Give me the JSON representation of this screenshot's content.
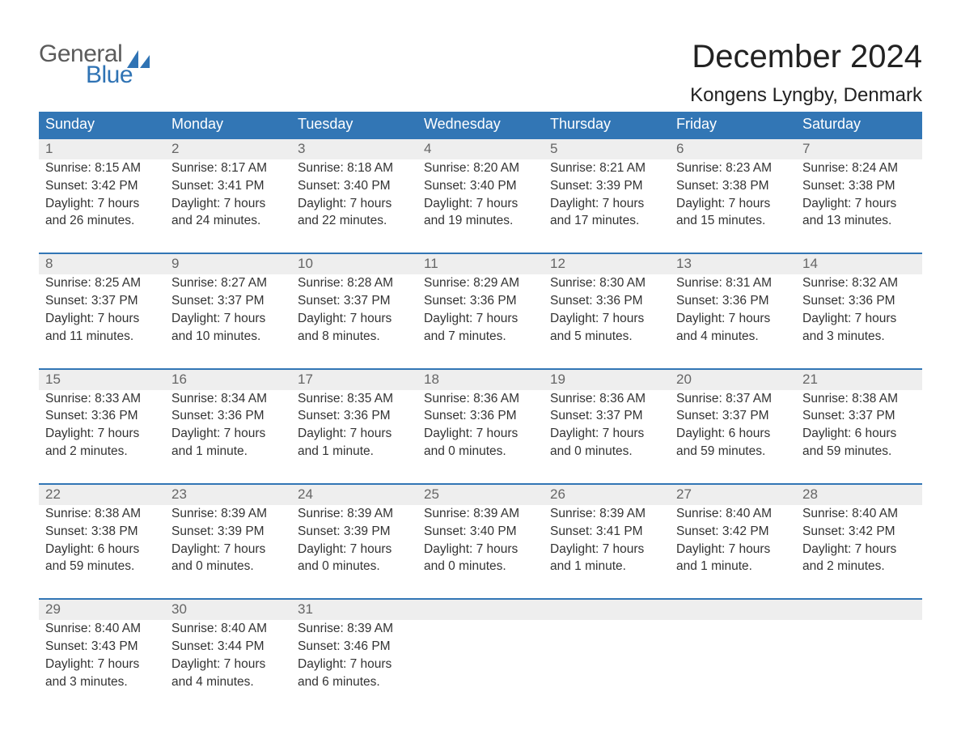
{
  "brand": {
    "line1": "General",
    "line2": "Blue",
    "text_color_1": "#5b5b5b",
    "text_color_2": "#2f73b4",
    "sail_color": "#2f73b4"
  },
  "title": {
    "month": "December 2024",
    "location": "Kongens Lyngby, Denmark",
    "month_fontsize": 40,
    "location_fontsize": 24,
    "text_color": "#222222"
  },
  "calendar": {
    "header_bg": "#3276b5",
    "header_text_color": "#ffffff",
    "week_border_color": "#3276b5",
    "daynum_bg": "#eeeeee",
    "daynum_color": "#666666",
    "body_text_color": "#333333",
    "background_color": "#ffffff",
    "day_headers": [
      "Sunday",
      "Monday",
      "Tuesday",
      "Wednesday",
      "Thursday",
      "Friday",
      "Saturday"
    ],
    "days": [
      {
        "n": "1",
        "sunrise": "Sunrise: 8:15 AM",
        "sunset": "Sunset: 3:42 PM",
        "dl1": "Daylight: 7 hours",
        "dl2": "and 26 minutes."
      },
      {
        "n": "2",
        "sunrise": "Sunrise: 8:17 AM",
        "sunset": "Sunset: 3:41 PM",
        "dl1": "Daylight: 7 hours",
        "dl2": "and 24 minutes."
      },
      {
        "n": "3",
        "sunrise": "Sunrise: 8:18 AM",
        "sunset": "Sunset: 3:40 PM",
        "dl1": "Daylight: 7 hours",
        "dl2": "and 22 minutes."
      },
      {
        "n": "4",
        "sunrise": "Sunrise: 8:20 AM",
        "sunset": "Sunset: 3:40 PM",
        "dl1": "Daylight: 7 hours",
        "dl2": "and 19 minutes."
      },
      {
        "n": "5",
        "sunrise": "Sunrise: 8:21 AM",
        "sunset": "Sunset: 3:39 PM",
        "dl1": "Daylight: 7 hours",
        "dl2": "and 17 minutes."
      },
      {
        "n": "6",
        "sunrise": "Sunrise: 8:23 AM",
        "sunset": "Sunset: 3:38 PM",
        "dl1": "Daylight: 7 hours",
        "dl2": "and 15 minutes."
      },
      {
        "n": "7",
        "sunrise": "Sunrise: 8:24 AM",
        "sunset": "Sunset: 3:38 PM",
        "dl1": "Daylight: 7 hours",
        "dl2": "and 13 minutes."
      },
      {
        "n": "8",
        "sunrise": "Sunrise: 8:25 AM",
        "sunset": "Sunset: 3:37 PM",
        "dl1": "Daylight: 7 hours",
        "dl2": "and 11 minutes."
      },
      {
        "n": "9",
        "sunrise": "Sunrise: 8:27 AM",
        "sunset": "Sunset: 3:37 PM",
        "dl1": "Daylight: 7 hours",
        "dl2": "and 10 minutes."
      },
      {
        "n": "10",
        "sunrise": "Sunrise: 8:28 AM",
        "sunset": "Sunset: 3:37 PM",
        "dl1": "Daylight: 7 hours",
        "dl2": "and 8 minutes."
      },
      {
        "n": "11",
        "sunrise": "Sunrise: 8:29 AM",
        "sunset": "Sunset: 3:36 PM",
        "dl1": "Daylight: 7 hours",
        "dl2": "and 7 minutes."
      },
      {
        "n": "12",
        "sunrise": "Sunrise: 8:30 AM",
        "sunset": "Sunset: 3:36 PM",
        "dl1": "Daylight: 7 hours",
        "dl2": "and 5 minutes."
      },
      {
        "n": "13",
        "sunrise": "Sunrise: 8:31 AM",
        "sunset": "Sunset: 3:36 PM",
        "dl1": "Daylight: 7 hours",
        "dl2": "and 4 minutes."
      },
      {
        "n": "14",
        "sunrise": "Sunrise: 8:32 AM",
        "sunset": "Sunset: 3:36 PM",
        "dl1": "Daylight: 7 hours",
        "dl2": "and 3 minutes."
      },
      {
        "n": "15",
        "sunrise": "Sunrise: 8:33 AM",
        "sunset": "Sunset: 3:36 PM",
        "dl1": "Daylight: 7 hours",
        "dl2": "and 2 minutes."
      },
      {
        "n": "16",
        "sunrise": "Sunrise: 8:34 AM",
        "sunset": "Sunset: 3:36 PM",
        "dl1": "Daylight: 7 hours",
        "dl2": "and 1 minute."
      },
      {
        "n": "17",
        "sunrise": "Sunrise: 8:35 AM",
        "sunset": "Sunset: 3:36 PM",
        "dl1": "Daylight: 7 hours",
        "dl2": "and 1 minute."
      },
      {
        "n": "18",
        "sunrise": "Sunrise: 8:36 AM",
        "sunset": "Sunset: 3:36 PM",
        "dl1": "Daylight: 7 hours",
        "dl2": "and 0 minutes."
      },
      {
        "n": "19",
        "sunrise": "Sunrise: 8:36 AM",
        "sunset": "Sunset: 3:37 PM",
        "dl1": "Daylight: 7 hours",
        "dl2": "and 0 minutes."
      },
      {
        "n": "20",
        "sunrise": "Sunrise: 8:37 AM",
        "sunset": "Sunset: 3:37 PM",
        "dl1": "Daylight: 6 hours",
        "dl2": "and 59 minutes."
      },
      {
        "n": "21",
        "sunrise": "Sunrise: 8:38 AM",
        "sunset": "Sunset: 3:37 PM",
        "dl1": "Daylight: 6 hours",
        "dl2": "and 59 minutes."
      },
      {
        "n": "22",
        "sunrise": "Sunrise: 8:38 AM",
        "sunset": "Sunset: 3:38 PM",
        "dl1": "Daylight: 6 hours",
        "dl2": "and 59 minutes."
      },
      {
        "n": "23",
        "sunrise": "Sunrise: 8:39 AM",
        "sunset": "Sunset: 3:39 PM",
        "dl1": "Daylight: 7 hours",
        "dl2": "and 0 minutes."
      },
      {
        "n": "24",
        "sunrise": "Sunrise: 8:39 AM",
        "sunset": "Sunset: 3:39 PM",
        "dl1": "Daylight: 7 hours",
        "dl2": "and 0 minutes."
      },
      {
        "n": "25",
        "sunrise": "Sunrise: 8:39 AM",
        "sunset": "Sunset: 3:40 PM",
        "dl1": "Daylight: 7 hours",
        "dl2": "and 0 minutes."
      },
      {
        "n": "26",
        "sunrise": "Sunrise: 8:39 AM",
        "sunset": "Sunset: 3:41 PM",
        "dl1": "Daylight: 7 hours",
        "dl2": "and 1 minute."
      },
      {
        "n": "27",
        "sunrise": "Sunrise: 8:40 AM",
        "sunset": "Sunset: 3:42 PM",
        "dl1": "Daylight: 7 hours",
        "dl2": "and 1 minute."
      },
      {
        "n": "28",
        "sunrise": "Sunrise: 8:40 AM",
        "sunset": "Sunset: 3:42 PM",
        "dl1": "Daylight: 7 hours",
        "dl2": "and 2 minutes."
      },
      {
        "n": "29",
        "sunrise": "Sunrise: 8:40 AM",
        "sunset": "Sunset: 3:43 PM",
        "dl1": "Daylight: 7 hours",
        "dl2": "and 3 minutes."
      },
      {
        "n": "30",
        "sunrise": "Sunrise: 8:40 AM",
        "sunset": "Sunset: 3:44 PM",
        "dl1": "Daylight: 7 hours",
        "dl2": "and 4 minutes."
      },
      {
        "n": "31",
        "sunrise": "Sunrise: 8:39 AM",
        "sunset": "Sunset: 3:46 PM",
        "dl1": "Daylight: 7 hours",
        "dl2": "and 6 minutes."
      },
      {
        "n": "",
        "sunrise": "",
        "sunset": "",
        "dl1": "",
        "dl2": ""
      },
      {
        "n": "",
        "sunrise": "",
        "sunset": "",
        "dl1": "",
        "dl2": ""
      },
      {
        "n": "",
        "sunrise": "",
        "sunset": "",
        "dl1": "",
        "dl2": ""
      },
      {
        "n": "",
        "sunrise": "",
        "sunset": "",
        "dl1": "",
        "dl2": ""
      }
    ]
  }
}
